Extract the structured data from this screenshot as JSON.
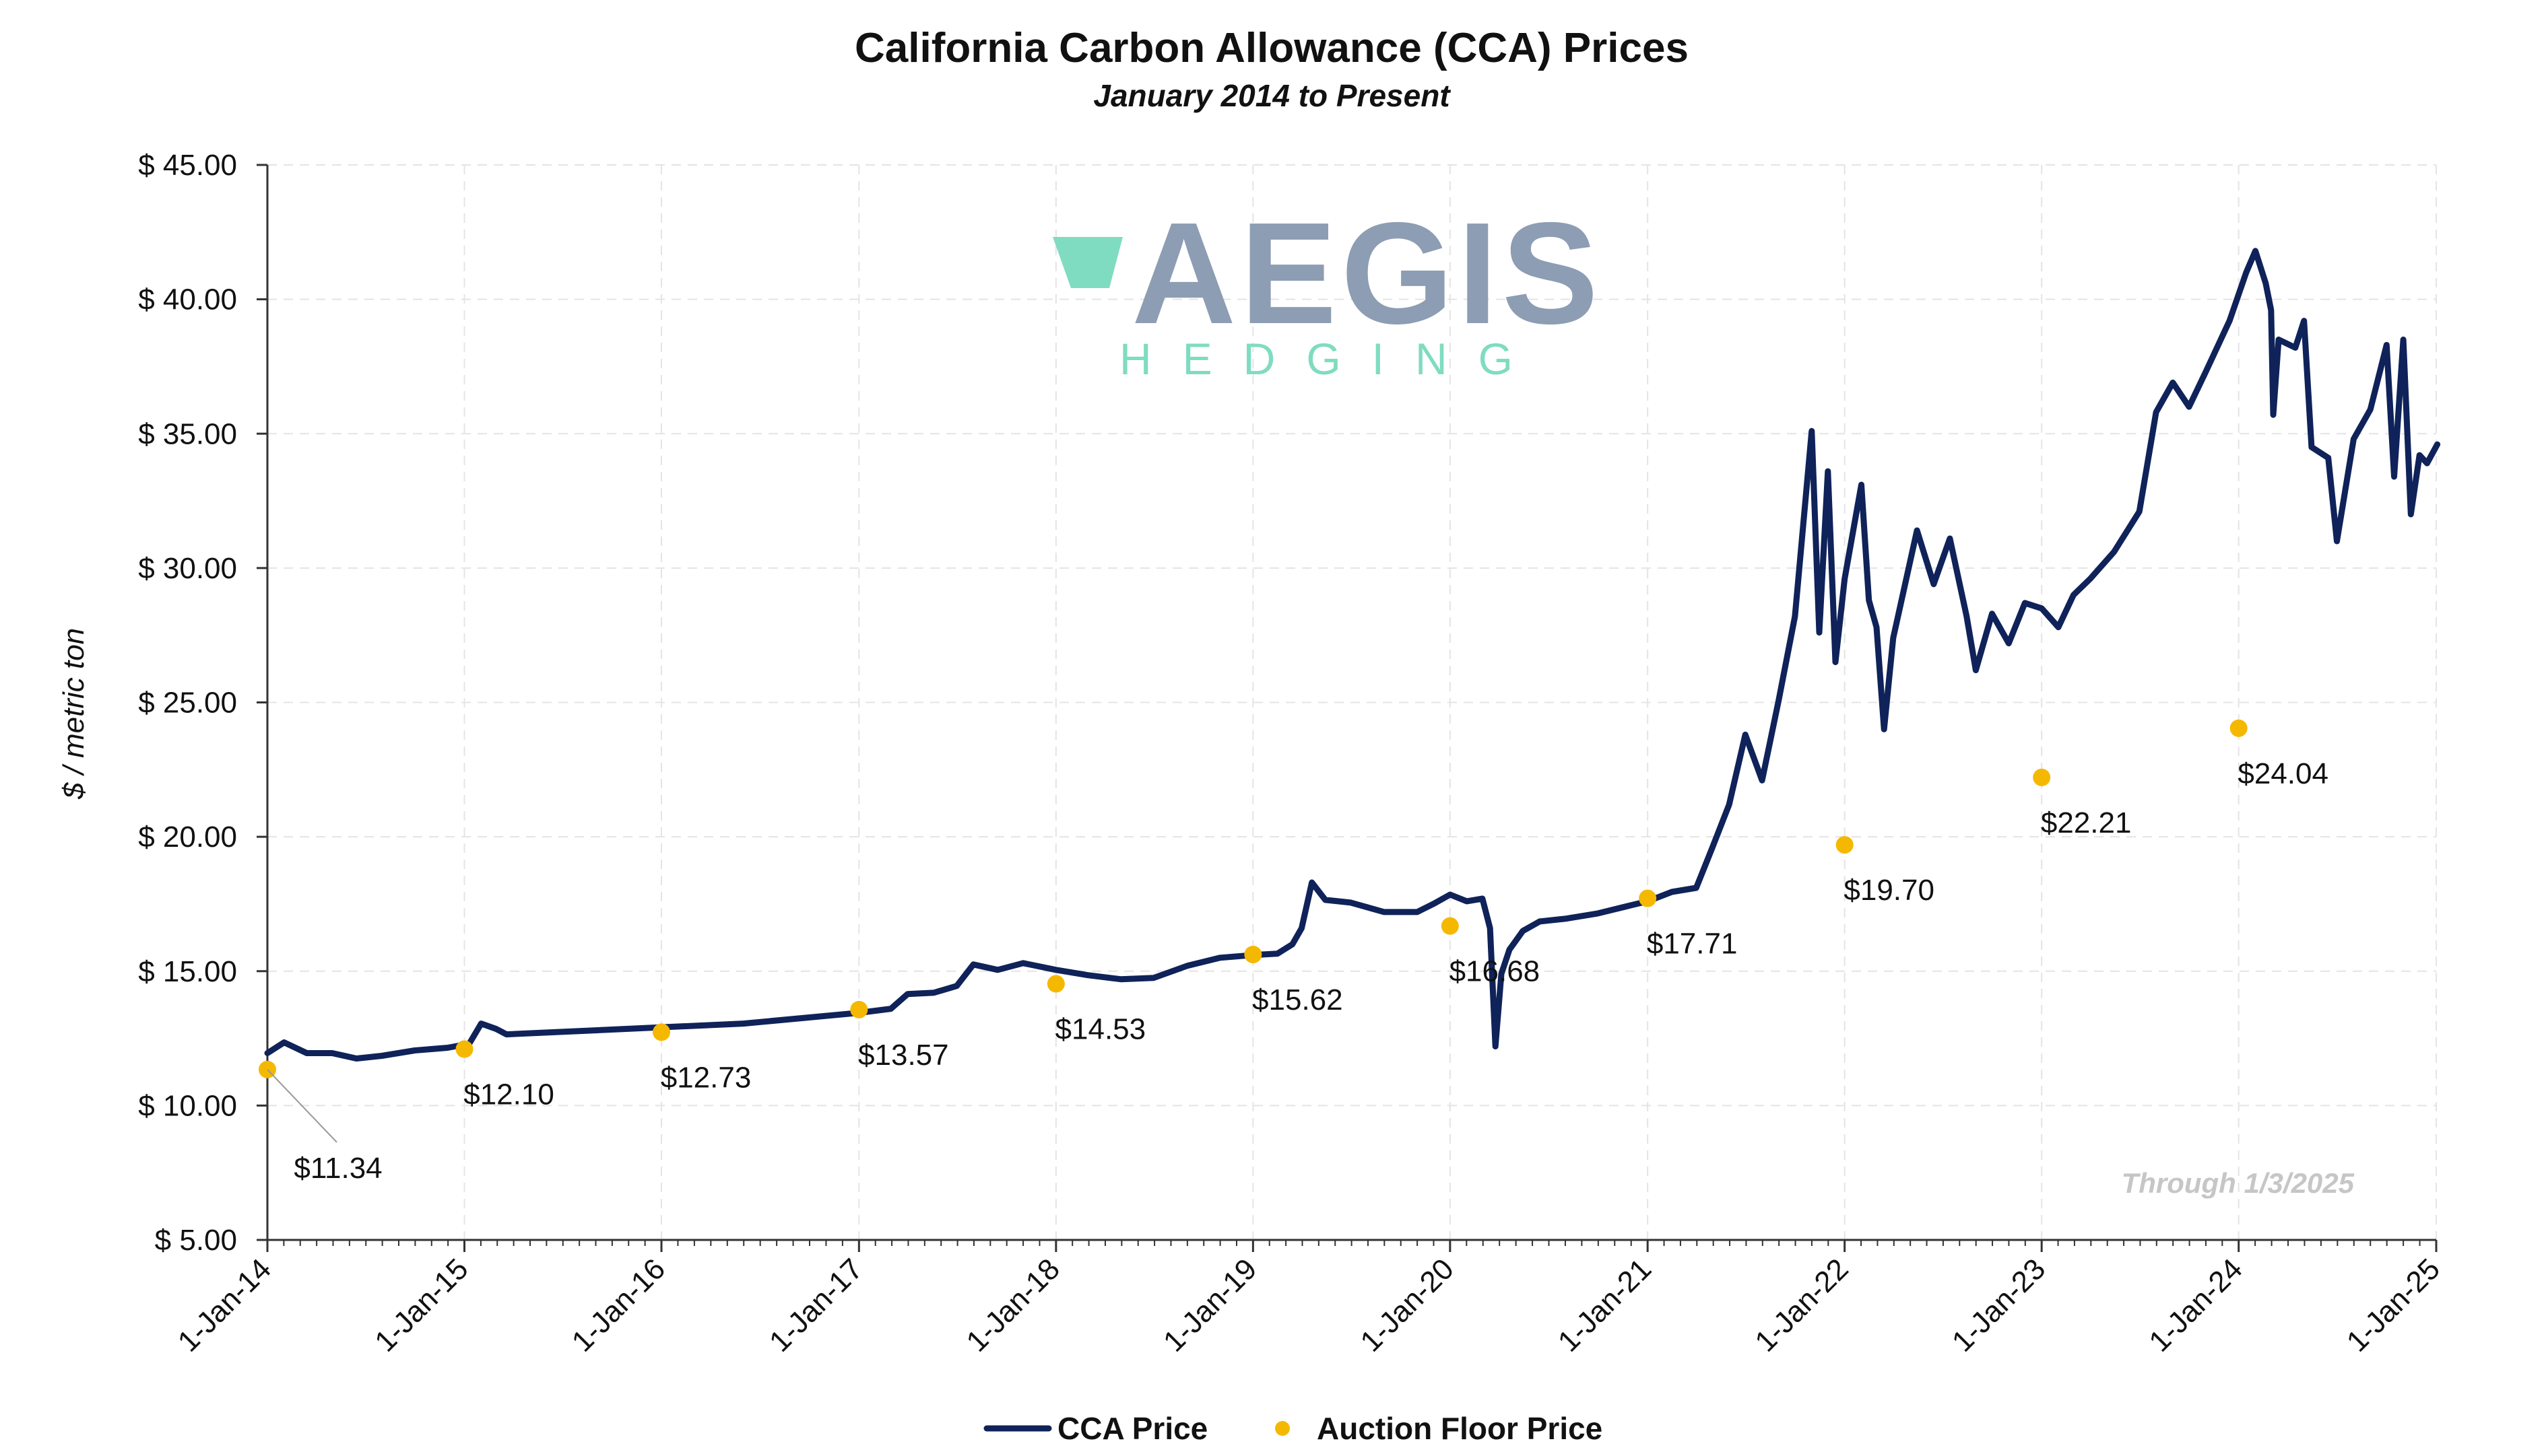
{
  "chart_data": {
    "type": "line",
    "title": "California Carbon Allowance (CCA) Prices",
    "subtitle": "January 2014 to Present",
    "ylabel": "$ / metric ton",
    "xlabel": "",
    "ylim": [
      5,
      45
    ],
    "xlim": [
      "2014-01-01",
      "2025-01-01"
    ],
    "y_ticks": [
      5,
      10,
      15,
      20,
      25,
      30,
      35,
      40,
      45
    ],
    "y_tick_labels": [
      "$ 5.00",
      "$ 10.00",
      "$ 15.00",
      "$ 20.00",
      "$ 25.00",
      "$ 30.00",
      "$ 35.00",
      "$ 40.00",
      "$ 45.00"
    ],
    "x_ticks": [
      "2014-01-01",
      "2015-01-01",
      "2016-01-01",
      "2017-01-01",
      "2018-01-01",
      "2019-01-01",
      "2020-01-01",
      "2021-01-01",
      "2022-01-01",
      "2023-01-01",
      "2024-01-01",
      "2025-01-01"
    ],
    "x_tick_labels": [
      "1-Jan-14",
      "1-Jan-15",
      "1-Jan-16",
      "1-Jan-17",
      "1-Jan-18",
      "1-Jan-19",
      "1-Jan-20",
      "1-Jan-21",
      "1-Jan-22",
      "1-Jan-23",
      "1-Jan-24",
      "1-Jan-25"
    ],
    "grid": true,
    "legend_placement": "bottom-center",
    "note": "Through 1/3/2025",
    "series": [
      {
        "name": "CCA Price",
        "kind": "line",
        "color": "#0f2259",
        "points": [
          [
            "2014-01-01",
            11.95
          ],
          [
            "2014-02-01",
            12.35
          ],
          [
            "2014-03-15",
            11.95
          ],
          [
            "2014-05-01",
            11.95
          ],
          [
            "2014-06-15",
            11.75
          ],
          [
            "2014-08-01",
            11.85
          ],
          [
            "2014-10-01",
            12.05
          ],
          [
            "2014-12-01",
            12.15
          ],
          [
            "2015-01-10",
            12.3
          ],
          [
            "2015-02-01",
            13.05
          ],
          [
            "2015-03-01",
            12.85
          ],
          [
            "2015-03-20",
            12.65
          ],
          [
            "2016-06-01",
            13.05
          ],
          [
            "2017-01-01",
            13.45
          ],
          [
            "2017-03-01",
            13.6
          ],
          [
            "2017-04-01",
            14.15
          ],
          [
            "2017-05-20",
            14.2
          ],
          [
            "2017-07-01",
            14.45
          ],
          [
            "2017-08-01",
            15.25
          ],
          [
            "2017-09-15",
            15.05
          ],
          [
            "2017-11-01",
            15.3
          ],
          [
            "2018-01-01",
            15.05
          ],
          [
            "2018-03-01",
            14.85
          ],
          [
            "2018-05-01",
            14.7
          ],
          [
            "2018-07-01",
            14.75
          ],
          [
            "2018-09-01",
            15.2
          ],
          [
            "2018-11-01",
            15.5
          ],
          [
            "2019-01-01",
            15.6
          ],
          [
            "2019-02-15",
            15.65
          ],
          [
            "2019-03-15",
            16.0
          ],
          [
            "2019-04-01",
            16.6
          ],
          [
            "2019-04-20",
            18.3
          ],
          [
            "2019-05-15",
            17.65
          ],
          [
            "2019-07-01",
            17.55
          ],
          [
            "2019-09-01",
            17.2
          ],
          [
            "2019-11-01",
            17.2
          ],
          [
            "2019-12-01",
            17.5
          ],
          [
            "2020-01-01",
            17.85
          ],
          [
            "2020-02-01",
            17.6
          ],
          [
            "2020-03-01",
            17.7
          ],
          [
            "2020-03-15",
            16.6
          ],
          [
            "2020-03-25",
            12.2
          ],
          [
            "2020-04-05",
            14.9
          ],
          [
            "2020-04-20",
            15.8
          ],
          [
            "2020-05-15",
            16.5
          ],
          [
            "2020-06-15",
            16.85
          ],
          [
            "2020-08-01",
            16.95
          ],
          [
            "2020-10-01",
            17.15
          ],
          [
            "2020-12-01",
            17.45
          ],
          [
            "2021-01-01",
            17.6
          ],
          [
            "2021-02-15",
            17.95
          ],
          [
            "2021-04-01",
            18.1
          ],
          [
            "2021-05-01",
            19.6
          ],
          [
            "2021-06-01",
            21.2
          ],
          [
            "2021-07-01",
            23.8
          ],
          [
            "2021-08-01",
            22.1
          ],
          [
            "2021-09-01",
            25.1
          ],
          [
            "2021-10-01",
            28.2
          ],
          [
            "2021-11-01",
            35.1
          ],
          [
            "2021-11-15",
            27.6
          ],
          [
            "2021-12-01",
            33.6
          ],
          [
            "2021-12-15",
            26.5
          ],
          [
            "2022-01-01",
            29.6
          ],
          [
            "2022-02-01",
            33.1
          ],
          [
            "2022-02-15",
            28.8
          ],
          [
            "2022-03-01",
            27.8
          ],
          [
            "2022-03-15",
            24.0
          ],
          [
            "2022-04-01",
            27.4
          ],
          [
            "2022-05-15",
            31.4
          ],
          [
            "2022-06-15",
            29.4
          ],
          [
            "2022-07-15",
            31.1
          ],
          [
            "2022-08-15",
            28.2
          ],
          [
            "2022-09-01",
            26.2
          ],
          [
            "2022-10-01",
            28.3
          ],
          [
            "2022-11-01",
            27.2
          ],
          [
            "2022-12-01",
            28.7
          ],
          [
            "2023-01-01",
            28.5
          ],
          [
            "2023-02-01",
            27.8
          ],
          [
            "2023-03-01",
            29.0
          ],
          [
            "2023-04-01",
            29.6
          ],
          [
            "2023-05-15",
            30.6
          ],
          [
            "2023-07-01",
            32.1
          ],
          [
            "2023-08-01",
            35.8
          ],
          [
            "2023-09-01",
            36.9
          ],
          [
            "2023-10-01",
            36.0
          ],
          [
            "2023-11-01",
            37.3
          ],
          [
            "2023-12-15",
            39.2
          ],
          [
            "2024-01-15",
            41.0
          ],
          [
            "2024-02-01",
            41.8
          ],
          [
            "2024-02-20",
            40.6
          ],
          [
            "2024-03-01",
            39.6
          ],
          [
            "2024-03-05",
            35.7
          ],
          [
            "2024-03-15",
            38.5
          ],
          [
            "2024-04-15",
            38.2
          ],
          [
            "2024-05-01",
            39.2
          ],
          [
            "2024-05-15",
            34.5
          ],
          [
            "2024-06-15",
            34.1
          ],
          [
            "2024-07-01",
            31.0
          ],
          [
            "2024-08-01",
            34.8
          ],
          [
            "2024-09-01",
            35.9
          ],
          [
            "2024-10-01",
            38.3
          ],
          [
            "2024-10-15",
            33.4
          ],
          [
            "2024-11-01",
            38.5
          ],
          [
            "2024-11-15",
            32.0
          ],
          [
            "2024-12-01",
            34.2
          ],
          [
            "2024-12-15",
            33.9
          ],
          [
            "2025-01-03",
            34.6
          ]
        ]
      },
      {
        "name": "Auction Floor Price",
        "kind": "scatter",
        "color": "#f5b800",
        "points": [
          {
            "x": "2014-01-01",
            "y": 11.34,
            "label": "$11.34"
          },
          {
            "x": "2015-01-01",
            "y": 12.1,
            "label": "$12.10"
          },
          {
            "x": "2016-01-01",
            "y": 12.73,
            "label": "$12.73"
          },
          {
            "x": "2017-01-01",
            "y": 13.57,
            "label": "$13.57"
          },
          {
            "x": "2018-01-01",
            "y": 14.53,
            "label": "$14.53"
          },
          {
            "x": "2019-01-01",
            "y": 15.62,
            "label": "$15.62"
          },
          {
            "x": "2020-01-01",
            "y": 16.68,
            "label": "$16.68"
          },
          {
            "x": "2021-01-01",
            "y": 17.71,
            "label": "$17.71"
          },
          {
            "x": "2022-01-01",
            "y": 19.7,
            "label": "$19.70"
          },
          {
            "x": "2023-01-01",
            "y": 22.21,
            "label": "$22.21"
          },
          {
            "x": "2024-01-01",
            "y": 24.04,
            "label": "$24.04"
          }
        ]
      }
    ]
  },
  "logo": {
    "main_text": "AEGIS",
    "sub_text": "HEDGING",
    "main_color": "#8d9db3",
    "accent_color": "#7fdcc0"
  }
}
